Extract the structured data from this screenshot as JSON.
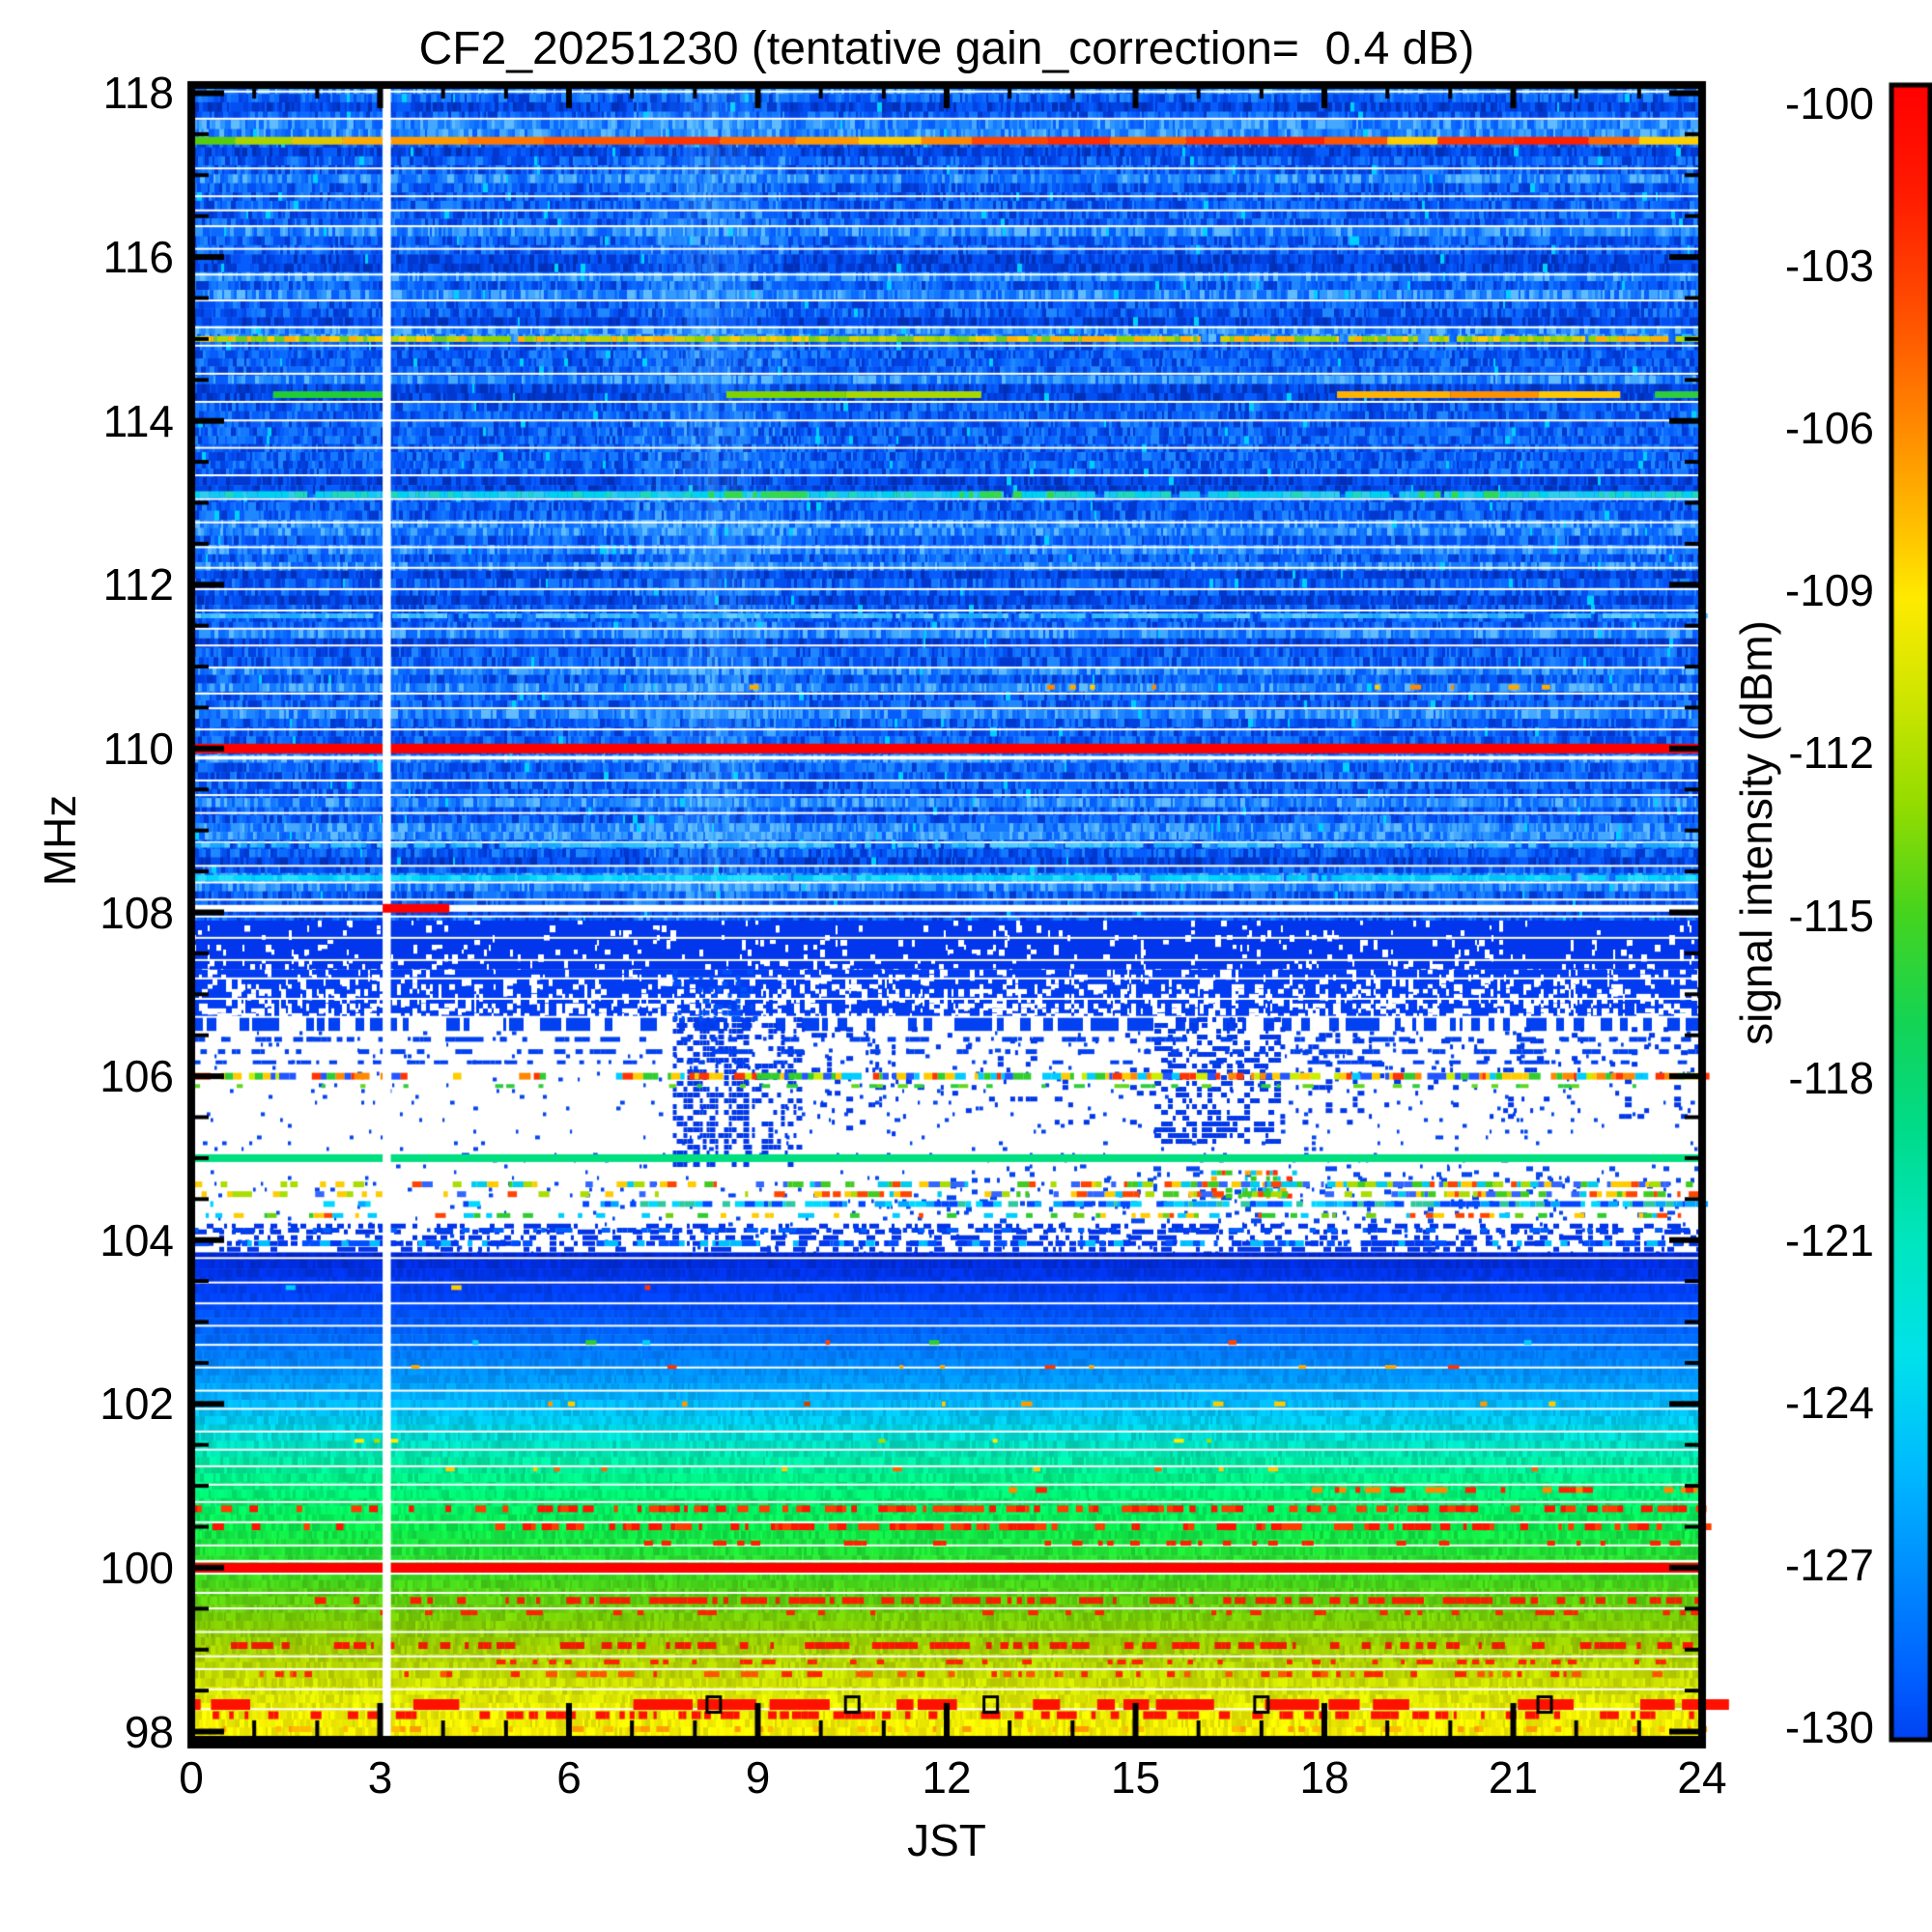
{
  "chart_data": {
    "type": "heatmap",
    "title": "CF2_20251230 (tentative gain_correction=  0.4 dB)",
    "xlabel": "JST",
    "ylabel": "MHz",
    "colorbar_label": "signal intensity (dBm)",
    "x_range": [
      0,
      24
    ],
    "x_ticks": [
      0,
      3,
      6,
      9,
      12,
      15,
      18,
      21,
      24
    ],
    "x_minor_step": 1,
    "y_range": [
      97.9,
      118.1
    ],
    "y_ticks": [
      118,
      116,
      114,
      112,
      110,
      108,
      106,
      104,
      102,
      100,
      98
    ],
    "y_minor_step": 0.5,
    "color_range": [
      -130,
      -100
    ],
    "colorbar_ticks": [
      -100,
      -103,
      -106,
      -109,
      -112,
      -115,
      -118,
      -121,
      -124,
      -127,
      -130
    ],
    "colormap": [
      [
        -100,
        "#ff0000"
      ],
      [
        -102,
        "#ff1c00"
      ],
      [
        -104,
        "#ff4c00"
      ],
      [
        -106,
        "#ff8400"
      ],
      [
        -108,
        "#ffc000"
      ],
      [
        -109.3,
        "#ffea00"
      ],
      [
        -111,
        "#d2e600"
      ],
      [
        -113,
        "#96dc00"
      ],
      [
        -115,
        "#46d41e"
      ],
      [
        -117,
        "#14d455"
      ],
      [
        -119,
        "#00dc8c"
      ],
      [
        -121,
        "#00e6c0"
      ],
      [
        -123,
        "#00e2ea"
      ],
      [
        -125,
        "#00bcff"
      ],
      [
        -127,
        "#008cff"
      ],
      [
        -129,
        "#005cff"
      ],
      [
        -130,
        "#0042f2"
      ]
    ],
    "background_color": "#ffffff",
    "axis_color": "#000000",
    "data_gap": {
      "t0": 3.04,
      "t1": 3.17,
      "color": "#ffffff"
    },
    "palette_blue": [
      "#0030b8",
      "#0138cf",
      "#0142e2",
      "#034ff2",
      "#075dfc",
      "#0c6bff",
      "#1579ff",
      "#2088ff",
      "#2f97ff",
      "#45a8ff",
      "#60bbff"
    ],
    "disturbance": {
      "t_center": 8.2,
      "t_half_width": 1.2,
      "max_alpha": 0.15,
      "color": "120,220,255"
    },
    "bands": [
      {
        "style": "noise",
        "f0": 107.9,
        "f1": 118.1
      },
      {
        "style": "solid_speck",
        "f0": 107.3,
        "f1": 107.9,
        "color": "#0136ec",
        "white_density": 0.1
      },
      {
        "style": "solid_speck",
        "f0": 106.72,
        "f1": 107.3,
        "color": "#013cf2",
        "white_density": 0.34
      },
      {
        "style": "dash_rows",
        "f0": 106.55,
        "f1": 106.72,
        "color": "#0141f2",
        "density": 0.5
      },
      {
        "style": "white",
        "f0": 103.85,
        "f1": 106.55,
        "dot_density": 0.04,
        "dot_color": "#0747ee"
      },
      {
        "style": "gradient",
        "f0": 97.9,
        "f1": 103.85
      }
    ],
    "gradient_stops": [
      [
        103.85,
        "#0026d0"
      ],
      [
        103.55,
        "#0034e8"
      ],
      [
        103.25,
        "#0046fa"
      ],
      [
        102.95,
        "#005eff"
      ],
      [
        102.65,
        "#0078ff"
      ],
      [
        102.35,
        "#0092ff"
      ],
      [
        102.1,
        "#00acff"
      ],
      [
        101.85,
        "#00c4f2"
      ],
      [
        101.6,
        "#00d8cf"
      ],
      [
        101.35,
        "#00e6a8"
      ],
      [
        101.1,
        "#00ef87"
      ],
      [
        100.8,
        "#00f26a"
      ],
      [
        100.5,
        "#0ae94e"
      ],
      [
        100.2,
        "#1fdf35"
      ],
      [
        99.9,
        "#3cd51f"
      ],
      [
        99.6,
        "#5ecf0e"
      ],
      [
        99.3,
        "#83cc04"
      ],
      [
        99.0,
        "#a3cf00"
      ],
      [
        98.7,
        "#c0da00"
      ],
      [
        98.45,
        "#d8e400"
      ],
      [
        98.2,
        "#ecec00"
      ],
      [
        97.9,
        "#fcf000"
      ]
    ],
    "white_line_grid": {
      "color": "#ffffff",
      "thickness": 2,
      "zones": [
        {
          "start": 118.02,
          "end": 108.12,
          "gap_min": 0.17,
          "gap_rand": 0.2
        },
        {
          "start": 107.95,
          "end": 106.6,
          "gap_min": 0.18,
          "gap_rand": 0.15
        },
        {
          "start": 103.78,
          "end": 98.02,
          "gap_min": 0.15,
          "gap_rand": 0.16
        }
      ],
      "extra_lines": [
        {
          "f": 109.88,
          "th": 2.5
        },
        {
          "f": 108.05,
          "th": 7
        },
        {
          "f": 104.97,
          "th": 2.5
        },
        {
          "f": 100.08,
          "th": 2.5
        }
      ]
    },
    "solid_lines": [
      {
        "f": 110.0,
        "th": 10,
        "color": "#ff0000"
      },
      {
        "f": 100.0,
        "th": 10,
        "color": "#ff0000"
      },
      {
        "f": 105.0,
        "th": 8,
        "color": "#00df7f"
      }
    ],
    "line_segments": [
      {
        "f": 117.42,
        "th": 8,
        "parts": [
          [
            0,
            0.7,
            "#55cc11"
          ],
          [
            0.7,
            1.6,
            "#a8d400"
          ],
          [
            1.6,
            2.4,
            "#e0c800"
          ],
          [
            2.4,
            3.04,
            "#ffaa00"
          ],
          [
            3.17,
            4.4,
            "#ff9900"
          ],
          [
            4.4,
            5.6,
            "#ff7700"
          ],
          [
            5.6,
            7.2,
            "#ff5500"
          ],
          [
            7.2,
            8.4,
            "#ff3300"
          ],
          [
            8.4,
            9.6,
            "#ff6600"
          ],
          [
            9.6,
            10.6,
            "#ff9900"
          ],
          [
            10.6,
            11.6,
            "#ffcc00"
          ],
          [
            11.6,
            12.4,
            "#ff8800"
          ],
          [
            12.4,
            13.6,
            "#ff4400"
          ],
          [
            13.6,
            14.6,
            "#ff2a00"
          ],
          [
            14.6,
            15.8,
            "#ff6600"
          ],
          [
            15.8,
            16.8,
            "#ff3300"
          ],
          [
            16.8,
            18.0,
            "#ff2200"
          ],
          [
            18.0,
            19.0,
            "#ff5500"
          ],
          [
            19.0,
            19.8,
            "#ffcc00"
          ],
          [
            19.8,
            21.0,
            "#ff3300"
          ],
          [
            21.0,
            22.2,
            "#ff1e00"
          ],
          [
            22.2,
            23.0,
            "#ff6600"
          ],
          [
            23.0,
            24,
            "#ffd000"
          ]
        ]
      },
      {
        "f": 114.32,
        "th": 7,
        "parts": [
          [
            1.3,
            3.04,
            "#22cc33"
          ],
          [
            8.5,
            10.4,
            "#7fd400"
          ],
          [
            10.4,
            12.55,
            "#a8d800"
          ],
          [
            18.2,
            20.0,
            "#ffb300"
          ],
          [
            20.0,
            21.4,
            "#ff9100"
          ],
          [
            21.4,
            22.7,
            "#ffc800"
          ],
          [
            23.25,
            24,
            "#2ecc3e"
          ]
        ]
      }
    ],
    "gap_overlay_segment": {
      "f": 108.05,
      "t0": 3.04,
      "t1": 4.1,
      "th": 9,
      "color": "#ff0000"
    },
    "speckle_rows": [
      {
        "f": 115.0,
        "th": 6,
        "palette": [
          "#8fd400",
          "#b4d800",
          "#d6d300",
          "#ffd000",
          "#6fcc22",
          "#ffb300"
        ],
        "segs": [
          [
            0,
            24,
            0.97
          ]
        ]
      },
      {
        "f": 113.1,
        "th": 7,
        "palette": [
          "#00d2ee",
          "#14c8f0",
          "#30ceea",
          "#20d8b8"
        ],
        "segs": [
          [
            0,
            24,
            0.95
          ]
        ]
      },
      {
        "f": 113.1,
        "th": 7,
        "palette": [
          "#30d855",
          "#38d84a"
        ],
        "segs": [
          [
            8,
            10,
            0.5
          ],
          [
            12.2,
            13.9,
            0.5
          ],
          [
            19.5,
            21,
            0.35
          ]
        ]
      },
      {
        "f": 111.62,
        "th": 5,
        "palette": [
          "#30b8ff",
          "#49c4ff",
          "#1fa8ff",
          "#65d0ff"
        ],
        "segs": [
          [
            0,
            24,
            0.9
          ]
        ]
      },
      {
        "f": 110.75,
        "th": 5,
        "palette": [
          "#ffd000",
          "#ffaa00",
          "#ff8800"
        ],
        "segs": [
          [
            8.4,
            15.6,
            0.13
          ],
          [
            18.8,
            21.8,
            0.06
          ]
        ]
      },
      {
        "f": 108.82,
        "th": 5,
        "palette": [
          "#2fc0ff",
          "#18a8ff",
          "#55ccff"
        ],
        "segs": [
          [
            0,
            24,
            0.7
          ]
        ]
      },
      {
        "f": 108.42,
        "th": 6,
        "palette": [
          "#00d8ff",
          "#22e2ff",
          "#00c4f6"
        ],
        "segs": [
          [
            0,
            24,
            0.95
          ]
        ]
      },
      {
        "f": 106.0,
        "th": 7,
        "palette": [
          "#ff3300",
          "#ffcc00",
          "#30cc30",
          "#00ccff",
          "#2255ff",
          "#ff8800",
          "#ccee00"
        ],
        "segs": [
          [
            0.05,
            2.7,
            0.85
          ],
          [
            2.7,
            6.7,
            0.15
          ],
          [
            6.7,
            24,
            0.88
          ]
        ]
      },
      {
        "f": 105.88,
        "th": 4,
        "palette": [
          "#30cc40",
          "#60d820"
        ],
        "segs": [
          [
            0,
            24,
            0.2
          ]
        ]
      },
      {
        "f": 106.45,
        "th": 5,
        "palette": [
          "#0141f0"
        ],
        "segs": [
          [
            0,
            24,
            0.5
          ]
        ]
      },
      {
        "f": 106.3,
        "th": 5,
        "palette": [
          "#0141f0"
        ],
        "segs": [
          [
            0,
            24,
            0.42
          ]
        ]
      },
      {
        "f": 106.17,
        "th": 4,
        "palette": [
          "#0141f0"
        ],
        "segs": [
          [
            0,
            24,
            0.3
          ]
        ]
      },
      {
        "f": 104.68,
        "th": 6,
        "palette": [
          "#ff4400",
          "#ffcc00",
          "#40cc20",
          "#00ccee",
          "#3366ff",
          "#aadd00"
        ],
        "segs": [
          [
            0,
            6,
            0.3
          ],
          [
            6,
            14,
            0.5
          ],
          [
            14,
            24,
            0.8
          ]
        ]
      },
      {
        "f": 104.56,
        "th": 6,
        "palette": [
          "#ff4400",
          "#ffcc00",
          "#40cc20",
          "#00ccee",
          "#3366ff",
          "#aadd00"
        ],
        "segs": [
          [
            0,
            6,
            0.25
          ],
          [
            6,
            14,
            0.45
          ],
          [
            14,
            24,
            0.72
          ]
        ]
      },
      {
        "f": 104.44,
        "th": 6,
        "palette": [
          "#0048ff",
          "#00a8ff",
          "#00d8ff",
          "#30c8a0"
        ],
        "segs": [
          [
            0,
            6.5,
            0.2
          ],
          [
            6.5,
            24,
            0.82
          ]
        ]
      },
      {
        "f": 104.3,
        "th": 5,
        "palette": [
          "#30cc30",
          "#70d010",
          "#ffcc00",
          "#ff4400",
          "#00ccff"
        ],
        "segs": [
          [
            0,
            24,
            0.4
          ]
        ]
      },
      {
        "f": 104.12,
        "th": 5,
        "palette": [
          "#0040ee",
          "#0060ff"
        ],
        "segs": [
          [
            0,
            24,
            0.45
          ]
        ]
      },
      {
        "f": 103.96,
        "th": 6,
        "palette": [
          "#0038ee",
          "#0050ff",
          "#00c0ff"
        ],
        "segs": [
          [
            0,
            24,
            0.55
          ]
        ]
      },
      {
        "f": 103.42,
        "th": 5,
        "palette": [
          "#ff3300",
          "#ffcc00",
          "#00ccff"
        ],
        "segs": [
          [
            1.5,
            13,
            0.05
          ]
        ]
      },
      {
        "f": 102.75,
        "th": 5,
        "palette": [
          "#ff4400",
          "#ffcc00",
          "#30cc30",
          "#00ccff"
        ],
        "segs": [
          [
            3,
            22,
            0.06
          ]
        ]
      },
      {
        "f": 102.45,
        "th": 4,
        "palette": [
          "#ff3300",
          "#ffaa00"
        ],
        "segs": [
          [
            3,
            20,
            0.04
          ]
        ]
      },
      {
        "f": 102.0,
        "th": 5,
        "palette": [
          "#ff9900",
          "#ffcc00",
          "#cc4400"
        ],
        "segs": [
          [
            3.5,
            10,
            0.09
          ],
          [
            10,
            22,
            0.04
          ]
        ]
      },
      {
        "f": 101.55,
        "th": 4,
        "palette": [
          "#ffee00",
          "#aadd00"
        ],
        "segs": [
          [
            2,
            20,
            0.05
          ]
        ]
      },
      {
        "f": 101.2,
        "th": 4,
        "palette": [
          "#ffcc00",
          "#ff6600"
        ],
        "segs": [
          [
            3,
            22,
            0.05
          ]
        ]
      },
      {
        "f": 100.95,
        "th": 6,
        "palette": [
          "#ff2200",
          "#ff8800"
        ],
        "segs": [
          [
            12.9,
            13.5,
            0.7
          ],
          [
            17.8,
            22.3,
            0.6
          ],
          [
            22.3,
            24,
            0.25
          ]
        ]
      },
      {
        "f": 100.72,
        "th": 7,
        "palette": [
          "#ff1400",
          "#ff3c00"
        ],
        "segs": [
          [
            0,
            5.5,
            0.22
          ],
          [
            5.5,
            24,
            0.55
          ]
        ]
      },
      {
        "f": 100.5,
        "th": 7,
        "palette": [
          "#ff1400",
          "#ff3c00"
        ],
        "segs": [
          [
            0,
            5,
            0.12
          ],
          [
            5,
            24,
            0.58
          ]
        ]
      },
      {
        "f": 100.3,
        "th": 5,
        "palette": [
          "#ff2200"
        ],
        "segs": [
          [
            7,
            24,
            0.18
          ]
        ]
      },
      {
        "f": 99.6,
        "th": 7,
        "palette": [
          "#ff1a00",
          "#ee2200"
        ],
        "segs": [
          [
            1.8,
            6,
            0.15
          ],
          [
            6,
            24,
            0.5
          ]
        ]
      },
      {
        "f": 99.45,
        "th": 5,
        "palette": [
          "#ff2200"
        ],
        "segs": [
          [
            3,
            24,
            0.22
          ]
        ]
      },
      {
        "f": 99.05,
        "th": 7,
        "palette": [
          "#ff1400",
          "#ee1a00"
        ],
        "segs": [
          [
            0.2,
            24,
            0.45
          ]
        ]
      },
      {
        "f": 98.85,
        "th": 5,
        "palette": [
          "#ff2200"
        ],
        "segs": [
          [
            4,
            24,
            0.2
          ]
        ]
      },
      {
        "f": 98.7,
        "th": 6,
        "palette": [
          "#ff2200",
          "#ff5500"
        ],
        "segs": [
          [
            1,
            24,
            0.28
          ]
        ]
      },
      {
        "f": 98.2,
        "th": 8,
        "palette": [
          "#ff1100"
        ],
        "segs": [
          [
            0,
            24,
            0.4
          ]
        ]
      },
      {
        "f": 98.03,
        "th": 6,
        "palette": [
          "#ff9900",
          "#ffbb00"
        ],
        "segs": [
          [
            0.5,
            24,
            0.3
          ]
        ]
      }
    ],
    "block_row": {
      "f": 98.33,
      "th": 11,
      "color": "#ff1100",
      "density": 0.52
    },
    "speckle_regions": [
      {
        "t0": 0,
        "t1": 24,
        "f0": 103.85,
        "f1": 104.2,
        "d": 0.4,
        "c": "#0334e6"
      },
      {
        "t0": 7.65,
        "t1": 8.8,
        "f0": 104.95,
        "f1": 106.72,
        "d": 0.55,
        "c": "#0238e8"
      },
      {
        "t0": 8.8,
        "t1": 9.7,
        "f0": 104.95,
        "f1": 106.72,
        "d": 0.3,
        "c": "#0238e8"
      },
      {
        "t0": 9.7,
        "t1": 11.2,
        "f0": 105.3,
        "f1": 106.6,
        "d": 0.12,
        "c": "#0238e8"
      },
      {
        "t0": 11.2,
        "t1": 15.3,
        "f0": 105.4,
        "f1": 106.6,
        "d": 0.06,
        "c": "#0238e8"
      },
      {
        "t0": 15.3,
        "t1": 17.3,
        "f0": 105.2,
        "f1": 106.72,
        "d": 0.42,
        "c": "#0238e8"
      },
      {
        "t0": 17.3,
        "t1": 18.6,
        "f0": 105.4,
        "f1": 106.6,
        "d": 0.15,
        "c": "#0238e8"
      },
      {
        "t0": 18.6,
        "t1": 24,
        "f0": 105.5,
        "f1": 106.6,
        "d": 0.07,
        "c": "#0238e8"
      },
      {
        "t0": 12,
        "t1": 24,
        "f0": 104.25,
        "f1": 104.9,
        "d": 0.1,
        "c": "#0747ee"
      },
      {
        "t0": 16.2,
        "t1": 17.6,
        "f0": 104.5,
        "f1": 104.85,
        "d": 0.5,
        "palette": [
          "#ff3300",
          "#ffaa00",
          "#33cc22",
          "#00ccee"
        ]
      },
      {
        "t0": 7.65,
        "t1": 9.0,
        "f0": 106.72,
        "f1": 107.3,
        "d": 0.25,
        "c": "#0150f8"
      }
    ],
    "markers": {
      "f": 98.33,
      "times": [
        8.3,
        10.5,
        12.7,
        17.0,
        21.5
      ],
      "color": "#000000"
    }
  }
}
